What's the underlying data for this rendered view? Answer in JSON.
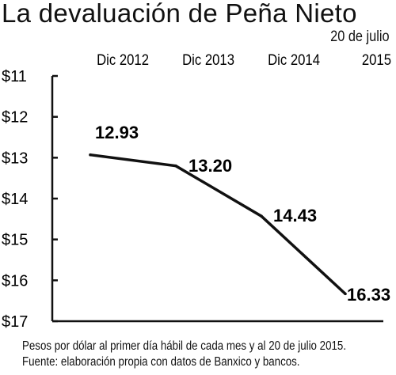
{
  "chart_data": {
    "type": "line",
    "title": "La devaluación de Peña Nieto",
    "subtitle": "20 de julio",
    "categories": [
      "Dic 2012",
      "Dic 2013",
      "Dic 2014",
      "2015"
    ],
    "series": [
      {
        "values": [
          12.93,
          13.2,
          14.43,
          16.33
        ]
      }
    ],
    "data_labels": [
      "12.93",
      "13.20",
      "14.43",
      "16.33"
    ],
    "y_ticks": [
      {
        "value": 11,
        "label": "$11"
      },
      {
        "value": 12,
        "label": "$12"
      },
      {
        "value": 13,
        "label": "$13"
      },
      {
        "value": 14,
        "label": "$14"
      },
      {
        "value": 15,
        "label": "$15"
      },
      {
        "value": 16,
        "label": "$16"
      },
      {
        "value": 17,
        "label": "$17"
      }
    ],
    "ylim": [
      11,
      17
    ],
    "y_inverted": true,
    "grid": false,
    "line_color": "#111111",
    "notes": [
      "Pesos por dólar al primer día hábil de cada mes y al 20 de julio 2015.",
      "Fuente: elaboración propia con datos de Banxico y bancos."
    ]
  }
}
